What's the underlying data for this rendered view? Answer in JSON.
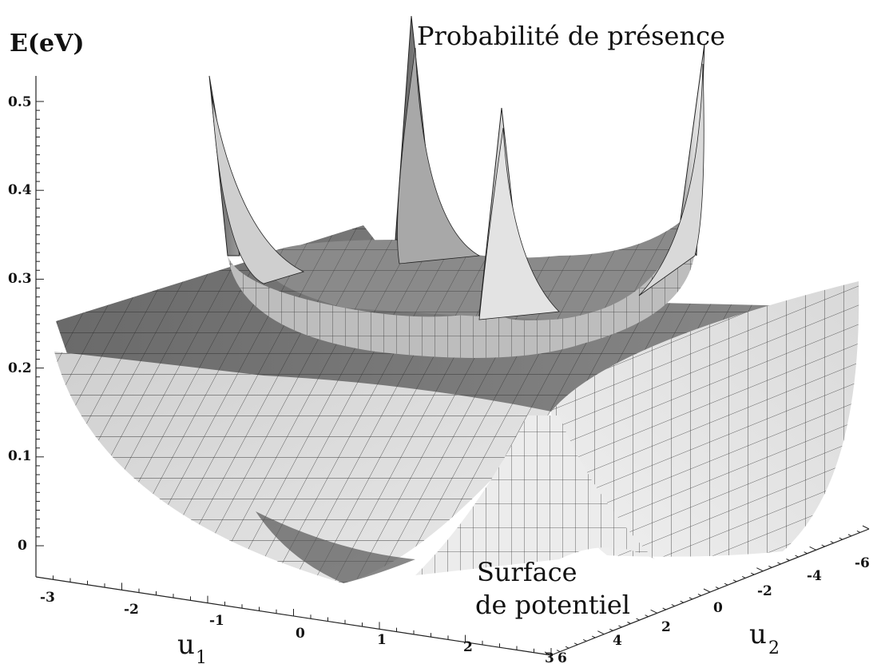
{
  "chart_data": {
    "type": "surface",
    "zlabel": "E(eV)",
    "xlabel": "u",
    "xlabel_sub": "1",
    "ylabel": "u",
    "ylabel_sub": "2",
    "zlim": [
      0,
      0.5
    ],
    "z_ticks": [
      "0.5",
      "0.4",
      "0.3",
      "0.2",
      "0.1",
      "0"
    ],
    "x_ticks": [
      "-3",
      "-2",
      "-1",
      "0",
      "1",
      "2",
      "3"
    ],
    "y_ticks": [
      "-6",
      "-4",
      "-2",
      "0",
      "2",
      "4",
      "6"
    ],
    "xlim": [
      -3,
      3
    ],
    "ylim": [
      6,
      -6
    ],
    "annotations": {
      "upper": "Probabilité de présence",
      "lower_line1": "Surface",
      "lower_line2": "de potentiel"
    },
    "surfaces": [
      {
        "name": "",
        "description_shape": "double-well potential surface with four minima",
        "base_level": 0,
        "edge_level": 0.25
      },
      {
        "name": "",
        "description_shape": "presence probability surface with four sharp peaks",
        "offset": 0.22,
        "peak_height": 0.5
      }
    ],
    "colors": {
      "surface_light": "#eeeeee",
      "surface_dark": "#5c5c5c",
      "mesh": "#111111"
    }
  }
}
